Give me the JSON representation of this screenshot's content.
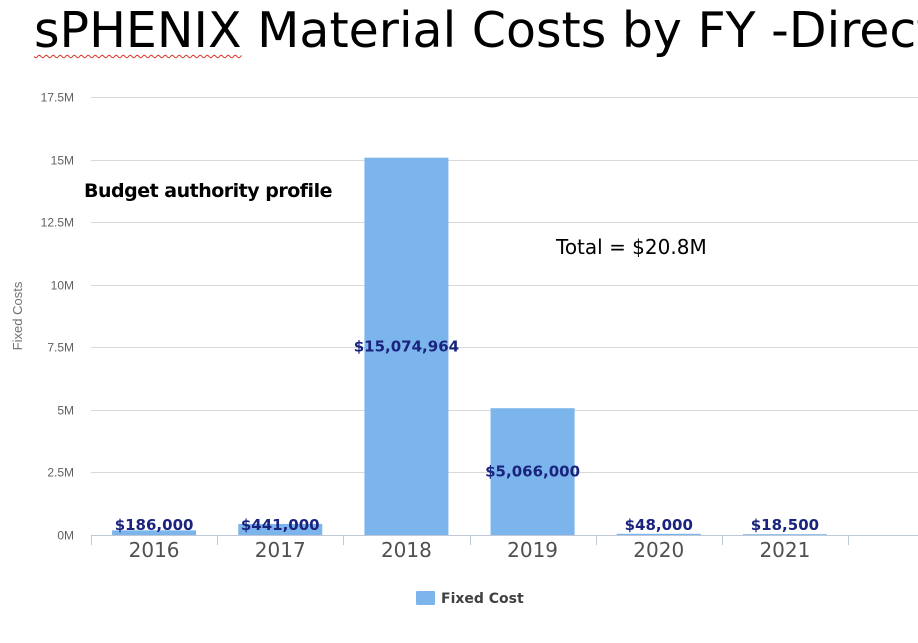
{
  "slide": {
    "title_lead": "sPHENIX",
    "title_rest": " Material Costs by FY -Direct",
    "annotation_budget": "Budget authority profile",
    "annotation_total": "Total = $20.8M"
  },
  "colors": {
    "bar": "#7cb5ec",
    "grid": "#d8d8d8",
    "data_label": "#1a237e",
    "spellcheck_underline": "#d93025"
  },
  "chart_data": {
    "type": "bar",
    "categories": [
      "2016",
      "2017",
      "2018",
      "2019",
      "2020",
      "2021"
    ],
    "series": [
      {
        "name": "Fixed Cost",
        "values": [
          186000,
          441000,
          15074964,
          5066000,
          48000,
          18500
        ],
        "data_labels": [
          "$186,000",
          "$441,000",
          "$15,074,964",
          "$5,066,000",
          "$48,000",
          "$18,500"
        ]
      }
    ],
    "ylabel": "Fixed Costs",
    "xlabel": "",
    "ylim": [
      0,
      17500000
    ],
    "yticks": [
      0,
      2500000,
      5000000,
      7500000,
      10000000,
      12500000,
      15000000,
      17500000
    ],
    "ytick_labels": [
      "0M",
      "2.5M",
      "5M",
      "7.5M",
      "10M",
      "12.5M",
      "15M",
      "17.5M"
    ],
    "grid": true,
    "legend": "bottom-center"
  }
}
